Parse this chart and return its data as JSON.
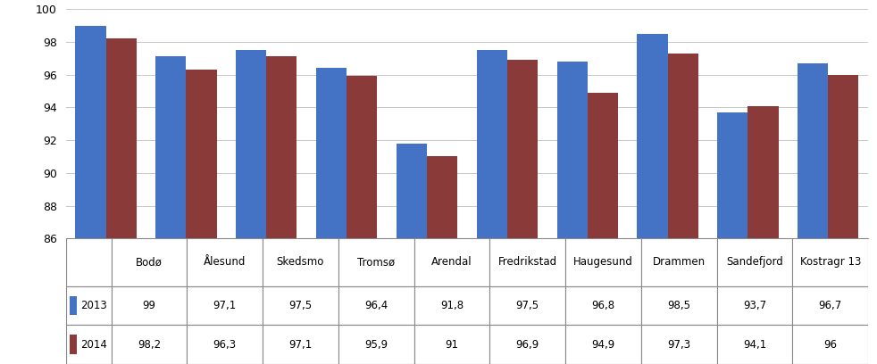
{
  "categories": [
    "Bodø",
    "Ålesund",
    "Skedsmo",
    "Tromsø",
    "Arendal",
    "Fredrikstad",
    "Haugesund",
    "Drammen",
    "Sandefjord",
    "Kostragr 13"
  ],
  "values_2013": [
    99,
    97.1,
    97.5,
    96.4,
    91.8,
    97.5,
    96.8,
    98.5,
    93.7,
    96.7
  ],
  "values_2014": [
    98.2,
    96.3,
    97.1,
    95.9,
    91,
    96.9,
    94.9,
    97.3,
    94.1,
    96
  ],
  "color_2013": "#4472C4",
  "color_2014": "#8B3A3A",
  "ylim_min": 86,
  "ylim_max": 100,
  "yticks": [
    86,
    88,
    90,
    92,
    94,
    96,
    98,
    100
  ],
  "legend_2013": "2013",
  "legend_2014": "2014",
  "grid_color": "#C8C8C8",
  "table_row_2013": [
    "99",
    "97,1",
    "97,5",
    "96,4",
    "91,8",
    "97,5",
    "96,8",
    "98,5",
    "93,7",
    "96,7"
  ],
  "table_row_2014": [
    "98,2",
    "96,3",
    "97,1",
    "95,9",
    "91",
    "96,9",
    "94,9",
    "97,3",
    "94,1",
    "96"
  ]
}
